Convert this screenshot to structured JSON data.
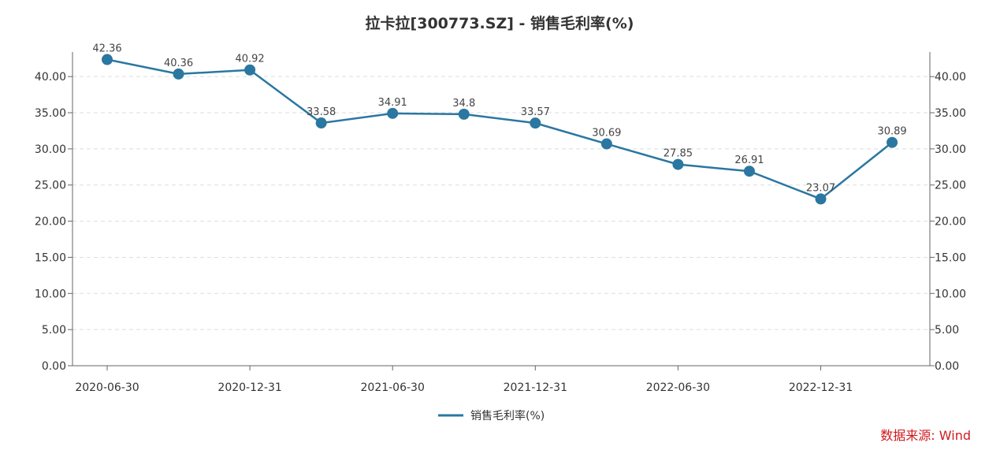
{
  "chart_data": {
    "type": "line",
    "title": "拉卡拉[300773.SZ] - 销售毛利率(%)",
    "x": [
      "2020-06-30",
      "2020-09-30",
      "2020-12-31",
      "2021-03-31",
      "2021-06-30",
      "2021-09-30",
      "2021-12-31",
      "2022-03-31",
      "2022-06-30",
      "2022-09-30",
      "2022-12-31",
      "2023-03-31"
    ],
    "x_tick_labels": [
      "2020-06-30",
      "2020-12-31",
      "2021-06-30",
      "2021-12-31",
      "2022-06-30",
      "2022-12-31"
    ],
    "series": [
      {
        "name": "销售毛利率(%)",
        "color": "#2a77a1",
        "values": [
          42.36,
          40.36,
          40.92,
          33.58,
          34.91,
          34.8,
          33.57,
          30.69,
          27.85,
          26.91,
          23.07,
          30.89
        ]
      }
    ],
    "y_tick_labels": [
      "0.00",
      "5.00",
      "10.00",
      "15.00",
      "20.00",
      "25.00",
      "30.00",
      "35.00",
      "40.00"
    ],
    "ylim": [
      0,
      43.4
    ],
    "grid": "horizontal dashed",
    "legend": "bottom-center",
    "dual_y_axis": true
  },
  "source": "数据来源: Wind"
}
